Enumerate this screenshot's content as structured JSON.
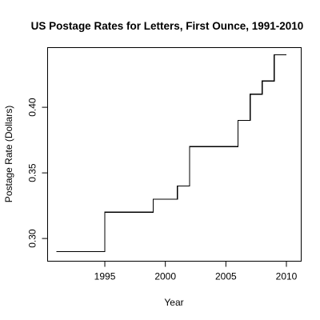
{
  "chart_data": {
    "type": "line",
    "style": "step",
    "title": "US Postage Rates for Letters, First Ounce, 1991-2010",
    "xlabel": "Year",
    "ylabel": "Postage Rate (Dollars)",
    "xlim": [
      1991,
      2010
    ],
    "ylim": [
      0.29,
      0.44
    ],
    "xticks": [
      1995,
      2000,
      2005,
      2010
    ],
    "yticks": [
      0.3,
      0.35,
      0.4
    ],
    "xtick_labels": [
      "1995",
      "2000",
      "2005",
      "2010"
    ],
    "ytick_labels": [
      "0.30",
      "0.35",
      "0.40"
    ],
    "grid": false,
    "series": [
      {
        "x": [
          1991,
          1995,
          1999,
          2001,
          2002,
          2006,
          2007,
          2008,
          2009,
          2010
        ],
        "y": [
          0.29,
          0.32,
          0.33,
          0.34,
          0.37,
          0.39,
          0.41,
          0.42,
          0.44,
          0.44
        ],
        "color": "#000000"
      }
    ]
  }
}
